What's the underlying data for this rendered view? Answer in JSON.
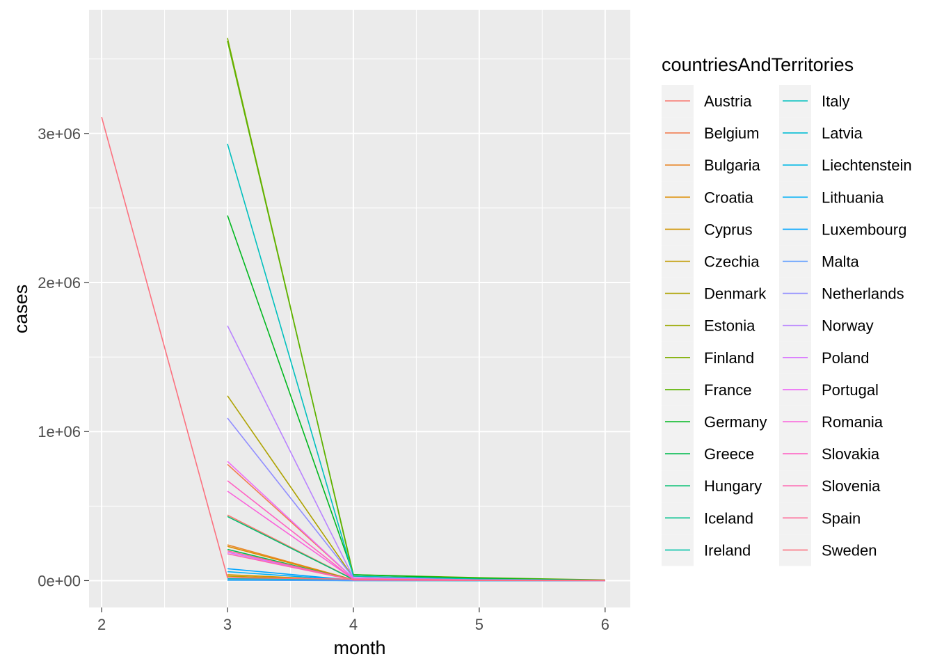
{
  "chart_data": {
    "type": "line",
    "xlabel": "month",
    "ylabel": "cases",
    "xlim": [
      1.9,
      6.2
    ],
    "ylim": [
      -180000,
      3830000
    ],
    "x_ticks": [
      2,
      3,
      4,
      5,
      6
    ],
    "x_tick_labels": [
      "2",
      "3",
      "4",
      "5",
      "6"
    ],
    "y_ticks": [
      0,
      1000000,
      2000000,
      3000000
    ],
    "y_tick_labels": [
      "0e+00",
      "1e+06",
      "2e+06",
      "3e+06"
    ],
    "grid": true,
    "legend": {
      "title": "countriesAndTerritories",
      "placement": "right",
      "columns": 2
    },
    "series": [
      {
        "name": "Austria",
        "color": "#F8766D",
        "x": [
          3,
          4,
          5,
          6
        ],
        "y": [
          440000,
          10000,
          3000,
          1000
        ]
      },
      {
        "name": "Belgium",
        "color": "#F17D51",
        "x": [
          3,
          4,
          5,
          6
        ],
        "y": [
          780000,
          15000,
          4000,
          1000
        ]
      },
      {
        "name": "Bulgaria",
        "color": "#E88526",
        "x": [
          3,
          4,
          5,
          6
        ],
        "y": [
          240000,
          6000,
          2000,
          500
        ]
      },
      {
        "name": "Croatia",
        "color": "#DD8D00",
        "x": [
          3,
          4,
          5,
          6
        ],
        "y": [
          230000,
          6000,
          2000,
          500
        ]
      },
      {
        "name": "Cyprus",
        "color": "#D09400",
        "x": [
          3,
          4,
          5,
          6
        ],
        "y": [
          40000,
          2000,
          500,
          200
        ]
      },
      {
        "name": "Czechia",
        "color": "#C09B00",
        "x": [
          3,
          4,
          5,
          6
        ],
        "y": [
          30000,
          2000,
          1000,
          200
        ]
      },
      {
        "name": "Denmark",
        "color": "#AEA200",
        "x": [
          3,
          4,
          5,
          6
        ],
        "y": [
          1240000,
          20000,
          5000,
          1000
        ]
      },
      {
        "name": "Estonia",
        "color": "#99A800",
        "x": [
          3,
          4,
          5,
          6
        ],
        "y": [
          10000,
          1000,
          300,
          100
        ]
      },
      {
        "name": "Finland",
        "color": "#7FAE00",
        "x": [
          3,
          4,
          5,
          6
        ],
        "y": [
          3640000,
          30000,
          10000,
          2000
        ]
      },
      {
        "name": "France",
        "color": "#5BB300",
        "x": [
          3,
          4,
          5,
          6
        ],
        "y": [
          3620000,
          40000,
          20000,
          5000
        ]
      },
      {
        "name": "Germany",
        "color": "#00B81F",
        "x": [
          3,
          4,
          5,
          6
        ],
        "y": [
          2450000,
          40000,
          15000,
          3000
        ]
      },
      {
        "name": "Greece",
        "color": "#00BB4E",
        "x": [
          3,
          4,
          5,
          6
        ],
        "y": [
          210000,
          5000,
          2000,
          500
        ]
      },
      {
        "name": "Hungary",
        "color": "#00BE70",
        "x": [
          3,
          4,
          5,
          6
        ],
        "y": [
          430000,
          8000,
          3000,
          500
        ]
      },
      {
        "name": "Iceland",
        "color": "#00C08D",
        "x": [
          3,
          4,
          5,
          6
        ],
        "y": [
          5000,
          500,
          200,
          100
        ]
      },
      {
        "name": "Ireland",
        "color": "#00C1A7",
        "x": [
          3,
          4,
          5,
          6
        ],
        "y": [
          15000,
          3000,
          1000,
          300
        ]
      },
      {
        "name": "Italy",
        "color": "#00C0BE",
        "x": [
          3,
          4,
          5,
          6
        ],
        "y": [
          2930000,
          30000,
          10000,
          2000
        ]
      },
      {
        "name": "Latvia",
        "color": "#00BDD3",
        "x": [
          3,
          4,
          5,
          6
        ],
        "y": [
          10000,
          1000,
          300,
          100
        ]
      },
      {
        "name": "Liechtenstein",
        "color": "#00B8E5",
        "x": [
          3,
          4,
          5,
          6
        ],
        "y": [
          2000,
          200,
          100,
          50
        ]
      },
      {
        "name": "Lithuania",
        "color": "#00B0F5",
        "x": [
          3,
          4,
          5,
          6
        ],
        "y": [
          60000,
          2000,
          500,
          100
        ]
      },
      {
        "name": "Luxembourg",
        "color": "#00A5FF",
        "x": [
          3,
          4,
          5,
          6
        ],
        "y": [
          80000,
          3000,
          1000,
          300
        ]
      },
      {
        "name": "Malta",
        "color": "#5B9BFF",
        "x": [
          3,
          4,
          5,
          6
        ],
        "y": [
          5000,
          500,
          200,
          100
        ]
      },
      {
        "name": "Netherlands",
        "color": "#918EFF",
        "x": [
          3,
          4,
          5,
          6
        ],
        "y": [
          1090000,
          20000,
          5000,
          1000
        ]
      },
      {
        "name": "Norway",
        "color": "#B983FF",
        "x": [
          3,
          4,
          5,
          6
        ],
        "y": [
          1710000,
          20000,
          5000,
          1000
        ]
      },
      {
        "name": "Poland",
        "color": "#D875FF",
        "x": [
          3,
          4,
          5,
          6
        ],
        "y": [
          190000,
          5000,
          2000,
          500
        ]
      },
      {
        "name": "Portugal",
        "color": "#EE6AF6",
        "x": [
          3,
          4,
          5,
          6
        ],
        "y": [
          800000,
          15000,
          4000,
          1000
        ]
      },
      {
        "name": "Romania",
        "color": "#FA62DB",
        "x": [
          3,
          4,
          5,
          6
        ],
        "y": [
          600000,
          10000,
          3000,
          1000
        ]
      },
      {
        "name": "Slovakia",
        "color": "#FF61C3",
        "x": [
          3,
          4,
          5,
          6
        ],
        "y": [
          670000,
          10000,
          3000,
          1000
        ]
      },
      {
        "name": "Slovenia",
        "color": "#FF64B0",
        "x": [
          3,
          4,
          5,
          6
        ],
        "y": [
          180000,
          4000,
          1000,
          300
        ]
      },
      {
        "name": "Spain",
        "color": "#FF6A98",
        "x": [
          3,
          4,
          5,
          6
        ],
        "y": [
          200000,
          5000,
          2000,
          500
        ]
      },
      {
        "name": "Sweden",
        "color": "#FC717F",
        "x": [
          2,
          3,
          4,
          5,
          6
        ],
        "y": [
          3110000,
          20000,
          10000,
          3000,
          1000
        ]
      }
    ]
  }
}
